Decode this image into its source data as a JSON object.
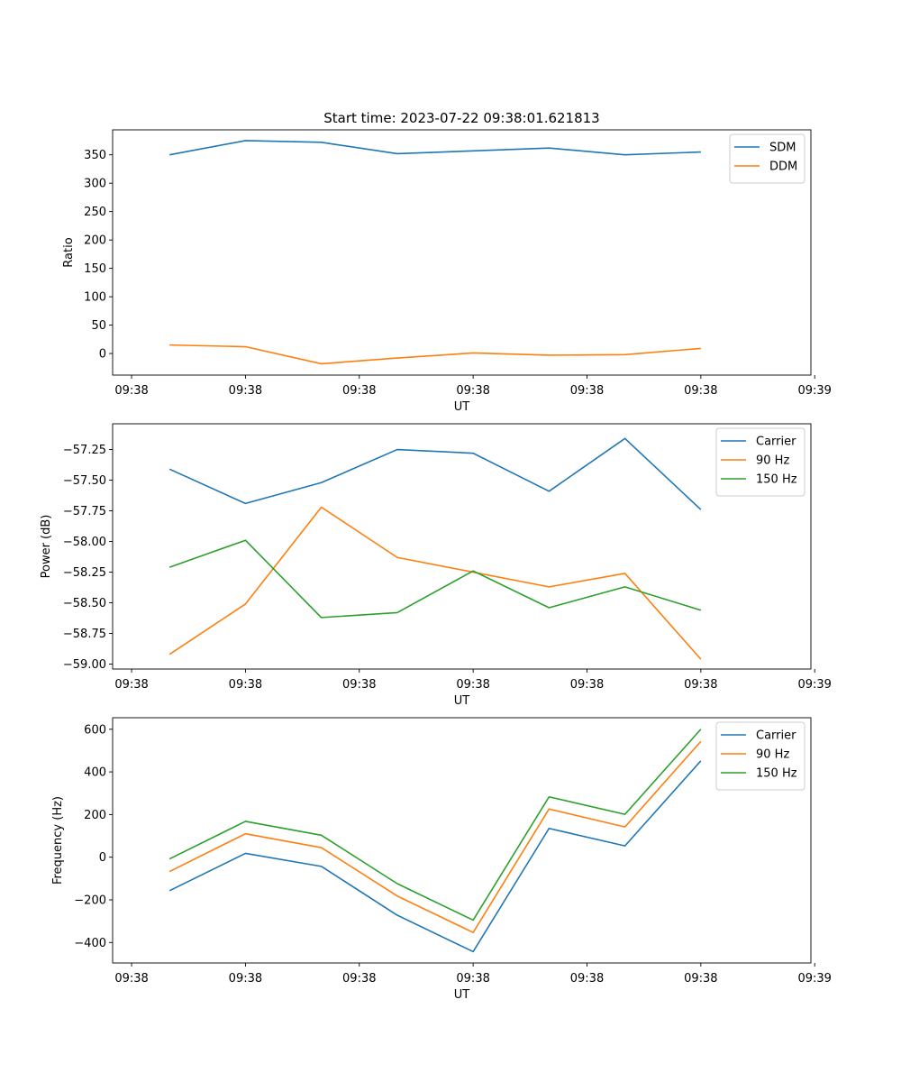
{
  "chart_data": [
    {
      "type": "line",
      "title": "Start time: 2023-07-22 09:38:01.621813",
      "xlabel": "UT",
      "ylabel": "Ratio",
      "x": [
        1,
        2,
        3,
        4,
        5,
        6,
        7,
        8
      ],
      "xlim": [
        0.25,
        9.45
      ],
      "xticks": [
        0.5,
        2.0,
        3.5,
        5.0,
        6.5,
        8.0,
        9.5
      ],
      "xticklabels": [
        "09:38",
        "09:38",
        "09:38",
        "09:38",
        "09:38",
        "09:38",
        "09:39"
      ],
      "ylim": [
        -38,
        394
      ],
      "yticks": [
        0,
        50,
        100,
        150,
        200,
        250,
        300,
        350
      ],
      "yticklabels": [
        "0",
        "50",
        "100",
        "150",
        "200",
        "250",
        "300",
        "350"
      ],
      "legend_position": "top-right",
      "series": [
        {
          "name": "SDM",
          "color": "#1f77b4",
          "values": [
            350,
            375,
            372,
            352,
            357,
            362,
            350,
            355
          ]
        },
        {
          "name": "DDM",
          "color": "#ff7f0e",
          "values": [
            15,
            12,
            -18,
            -8,
            1,
            -3,
            -2,
            9
          ]
        }
      ]
    },
    {
      "type": "line",
      "title": "",
      "xlabel": "UT",
      "ylabel": "Power (dB)",
      "x": [
        1,
        2,
        3,
        4,
        5,
        6,
        7,
        8
      ],
      "xlim": [
        0.25,
        9.45
      ],
      "xticks": [
        0.5,
        2.0,
        3.5,
        5.0,
        6.5,
        8.0,
        9.5
      ],
      "xticklabels": [
        "09:38",
        "09:38",
        "09:38",
        "09:38",
        "09:38",
        "09:38",
        "09:39"
      ],
      "ylim": [
        -59.04,
        -57.04
      ],
      "yticks": [
        -59.0,
        -58.75,
        -58.5,
        -58.25,
        -58.0,
        -57.75,
        -57.5,
        -57.25
      ],
      "yticklabels": [
        "−59.00",
        "−58.75",
        "−58.50",
        "−58.25",
        "−58.00",
        "−57.75",
        "−57.50",
        "−57.25"
      ],
      "legend_position": "top-right",
      "series": [
        {
          "name": "Carrier",
          "color": "#1f77b4",
          "values": [
            -57.41,
            -57.69,
            -57.52,
            -57.25,
            -57.28,
            -57.59,
            -57.16,
            -57.74
          ]
        },
        {
          "name": "90 Hz",
          "color": "#ff7f0e",
          "values": [
            -58.92,
            -58.51,
            -57.72,
            -58.13,
            -58.25,
            -58.37,
            -58.26,
            -58.96
          ]
        },
        {
          "name": "150 Hz",
          "color": "#2ca02c",
          "values": [
            -58.21,
            -57.99,
            -58.62,
            -58.58,
            -58.24,
            -58.54,
            -58.37,
            -58.56
          ]
        }
      ]
    },
    {
      "type": "line",
      "title": "",
      "xlabel": "UT",
      "ylabel": "Frequency (Hz)",
      "x": [
        1,
        2,
        3,
        4,
        5,
        6,
        7,
        8
      ],
      "xlim": [
        0.25,
        9.45
      ],
      "xticks": [
        0.5,
        2.0,
        3.5,
        5.0,
        6.5,
        8.0,
        9.5
      ],
      "xticklabels": [
        "09:38",
        "09:38",
        "09:38",
        "09:38",
        "09:38",
        "09:38",
        "09:39"
      ],
      "ylim": [
        -496,
        654
      ],
      "yticks": [
        -400,
        -200,
        0,
        200,
        400,
        600
      ],
      "yticklabels": [
        "−400",
        "−200",
        "0",
        "200",
        "400",
        "600"
      ],
      "legend_position": "top-right",
      "series": [
        {
          "name": "Carrier",
          "color": "#1f77b4",
          "values": [
            -157,
            18,
            -43,
            -272,
            -443,
            135,
            53,
            452
          ]
        },
        {
          "name": "90 Hz",
          "color": "#ff7f0e",
          "values": [
            -67,
            110,
            45,
            -182,
            -353,
            226,
            142,
            543
          ]
        },
        {
          "name": "150 Hz",
          "color": "#2ca02c",
          "values": [
            -8,
            168,
            103,
            -124,
            -295,
            283,
            201,
            600
          ]
        }
      ]
    }
  ]
}
